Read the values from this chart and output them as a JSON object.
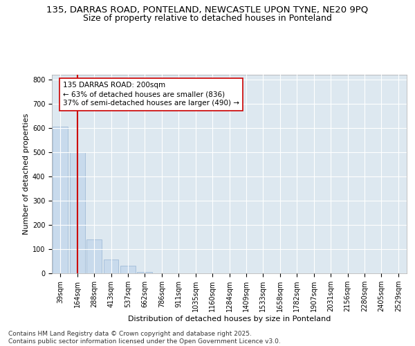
{
  "title_line1": "135, DARRAS ROAD, PONTELAND, NEWCASTLE UPON TYNE, NE20 9PQ",
  "title_line2": "Size of property relative to detached houses in Ponteland",
  "xlabel": "Distribution of detached houses by size in Ponteland",
  "ylabel": "Number of detached properties",
  "bar_labels": [
    "39sqm",
    "164sqm",
    "288sqm",
    "413sqm",
    "537sqm",
    "662sqm",
    "786sqm",
    "911sqm",
    "1035sqm",
    "1160sqm",
    "1284sqm",
    "1409sqm",
    "1533sqm",
    "1658sqm",
    "1782sqm",
    "1907sqm",
    "2031sqm",
    "2156sqm",
    "2280sqm",
    "2405sqm",
    "2529sqm"
  ],
  "bar_values": [
    606,
    500,
    141,
    58,
    30,
    7,
    1,
    0,
    0,
    0,
    0,
    0,
    0,
    0,
    0,
    0,
    0,
    0,
    0,
    0,
    0
  ],
  "bar_color": "#c8daec",
  "bar_edgecolor": "#a0bcd8",
  "bg_color": "#dde8f0",
  "grid_color": "#ffffff",
  "vline_x": 1,
  "vline_color": "#cc0000",
  "annotation_text": "135 DARRAS ROAD: 200sqm\n← 63% of detached houses are smaller (836)\n37% of semi-detached houses are larger (490) →",
  "ylim": [
    0,
    820
  ],
  "yticks": [
    0,
    100,
    200,
    300,
    400,
    500,
    600,
    700,
    800
  ],
  "footer_text": "Contains HM Land Registry data © Crown copyright and database right 2025.\nContains public sector information licensed under the Open Government Licence v3.0.",
  "title1_fontsize": 9.5,
  "title2_fontsize": 9.0,
  "axis_label_fontsize": 8,
  "tick_fontsize": 7,
  "annotation_fontsize": 7.5,
  "footer_fontsize": 6.5
}
